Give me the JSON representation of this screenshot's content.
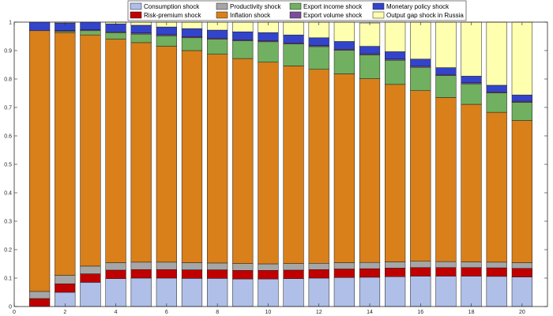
{
  "chart_data": {
    "type": "bar",
    "stacked": true,
    "x": [
      1,
      2,
      3,
      4,
      5,
      6,
      7,
      8,
      9,
      10,
      11,
      12,
      13,
      14,
      15,
      16,
      17,
      18,
      19,
      20
    ],
    "xlim": [
      0,
      21
    ],
    "ylim": [
      0,
      1
    ],
    "xticks": [
      "0",
      "2",
      "4",
      "6",
      "8",
      "10",
      "12",
      "14",
      "16",
      "18",
      "20"
    ],
    "yticks": [
      "0",
      "0.1",
      "0.2",
      "0.3",
      "0.4",
      "0.5",
      "0.6",
      "0.7",
      "0.8",
      "0.9",
      "1"
    ],
    "grid": false,
    "legend_position": "top-center",
    "series": [
      {
        "name": "Consumption shock",
        "color": "#b0bfe8",
        "values": [
          0.0,
          0.05,
          0.085,
          0.098,
          0.1,
          0.1,
          0.099,
          0.099,
          0.097,
          0.097,
          0.098,
          0.1,
          0.102,
          0.103,
          0.105,
          0.107,
          0.107,
          0.107,
          0.106,
          0.104
        ]
      },
      {
        "name": "Risk-premium shock",
        "color": "#c00000",
        "values": [
          0.028,
          0.03,
          0.03,
          0.03,
          0.03,
          0.03,
          0.03,
          0.03,
          0.03,
          0.03,
          0.03,
          0.03,
          0.03,
          0.03,
          0.03,
          0.03,
          0.03,
          0.03,
          0.03,
          0.03
        ]
      },
      {
        "name": "Productivity shock",
        "color": "#a6a6a6",
        "values": [
          0.025,
          0.03,
          0.027,
          0.026,
          0.026,
          0.026,
          0.025,
          0.024,
          0.024,
          0.023,
          0.023,
          0.022,
          0.022,
          0.022,
          0.022,
          0.022,
          0.021,
          0.02,
          0.02,
          0.02
        ]
      },
      {
        "name": "Inflation shock",
        "color": "#d9801a",
        "values": [
          0.917,
          0.853,
          0.813,
          0.786,
          0.772,
          0.759,
          0.746,
          0.734,
          0.721,
          0.709,
          0.695,
          0.682,
          0.664,
          0.646,
          0.624,
          0.6,
          0.577,
          0.554,
          0.527,
          0.5
        ]
      },
      {
        "name": "Export income shock",
        "color": "#70b060",
        "values": [
          0.0,
          0.005,
          0.015,
          0.023,
          0.03,
          0.037,
          0.045,
          0.053,
          0.062,
          0.072,
          0.077,
          0.08,
          0.083,
          0.084,
          0.085,
          0.082,
          0.077,
          0.072,
          0.068,
          0.064
        ]
      },
      {
        "name": "Export volume shock",
        "color": "#7b4e9a",
        "values": [
          0.0,
          0.002,
          0.003,
          0.003,
          0.004,
          0.004,
          0.004,
          0.004,
          0.004,
          0.004,
          0.004,
          0.004,
          0.004,
          0.004,
          0.004,
          0.004,
          0.004,
          0.004,
          0.004,
          0.004
        ]
      },
      {
        "name": "Monetary policy shock",
        "color": "#3344cc",
        "values": [
          0.03,
          0.027,
          0.027,
          0.028,
          0.027,
          0.027,
          0.028,
          0.028,
          0.028,
          0.028,
          0.028,
          0.027,
          0.027,
          0.026,
          0.026,
          0.025,
          0.024,
          0.023,
          0.023,
          0.022
        ]
      },
      {
        "name": "Output gap shock in Russia",
        "color": "#ffffb0",
        "values": [
          0.0,
          0.003,
          0.0,
          0.006,
          0.011,
          0.017,
          0.023,
          0.028,
          0.034,
          0.037,
          0.045,
          0.055,
          0.068,
          0.082,
          0.104,
          0.13,
          0.16,
          0.19,
          0.222,
          0.256
        ]
      }
    ],
    "legend_order": [
      "Consumption shock",
      "Risk-premium shock",
      "Productivity shock",
      "Inflation shock",
      "Export income shock",
      "Export volume shock",
      "Monetary policy shock",
      "Output gap shock in Russia"
    ]
  }
}
